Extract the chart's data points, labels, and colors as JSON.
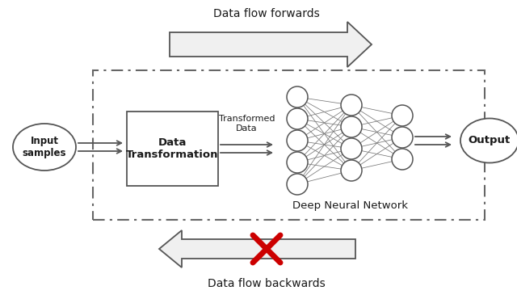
{
  "bg_color": "#ffffff",
  "text_color": "#1a1a1a",
  "edge_color": "#555555",
  "red_color": "#cc0000",
  "forward_label": "Data flow forwards",
  "backward_label": "Data flow backwards",
  "input_label": "Input\nsamples",
  "transform_label": "Data\nTransformation",
  "transformed_data_label": "Transformed\nData",
  "dnn_label": "Deep Neural Network",
  "output_label": "Output",
  "fig_width": 6.4,
  "fig_height": 3.7,
  "dpi": 100
}
